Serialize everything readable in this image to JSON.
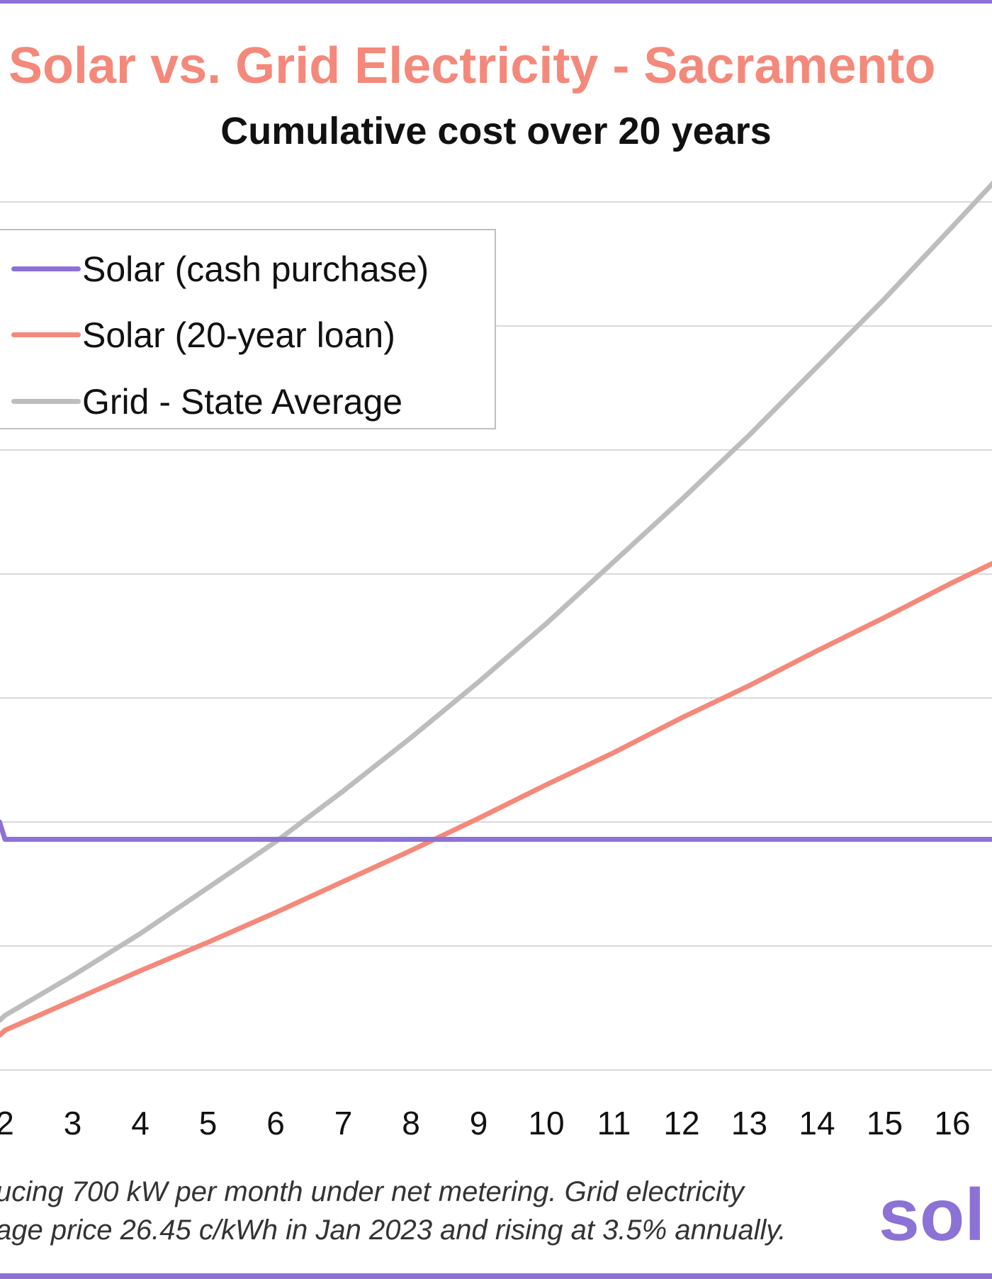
{
  "title": "Solar vs. Grid Electricity - Sacramento",
  "subtitle": "Cumulative cost over 20 years",
  "colors": {
    "accent": "#8c72d6",
    "title": "#f4897b",
    "solar_cash": "#8c72d6",
    "solar_loan": "#f4897b",
    "grid": "#bdbdbd",
    "gridline": "#d9d9d9"
  },
  "legend": {
    "items": [
      {
        "label": "Solar (cash purchase)",
        "color": "#8c72d6"
      },
      {
        "label": "Solar (20-year loan)",
        "color": "#f4897b"
      },
      {
        "label": "Grid - State Average",
        "color": "#bdbdbd"
      }
    ]
  },
  "footnote": {
    "line1": "ucing 700 kW per month under net metering. Grid electricity",
    "line2": "age price 26.45 c/kWh in Jan 2023 and rising at 3.5% annually."
  },
  "logo_text": "sol",
  "chart_data": {
    "type": "line",
    "title": "Solar vs. Grid Electricity - Sacramento",
    "subtitle": "Cumulative cost over 20 years",
    "x_tick_labels": [
      "2",
      "3",
      "4",
      "5",
      "6",
      "7",
      "8",
      "9",
      "10",
      "11",
      "12",
      "13",
      "14",
      "15",
      "16"
    ],
    "grid": true,
    "legend_position": "top-left",
    "note": "Y axis values not visible in crop; series given in gridline units (0 = bottom gridline, 7 = top gridline).",
    "ylim": [
      0,
      7
    ],
    "series": [
      {
        "name": "Solar (cash purchase)",
        "color": "#8c72d6",
        "x": [
          1.92,
          2,
          3,
          4,
          5,
          6,
          7,
          8,
          9,
          10,
          11,
          12,
          13,
          14,
          15,
          16,
          16.65
        ],
        "y": [
          2.0,
          1.86,
          1.86,
          1.86,
          1.86,
          1.86,
          1.86,
          1.86,
          1.86,
          1.86,
          1.86,
          1.86,
          1.86,
          1.86,
          1.86,
          1.86,
          1.86
        ]
      },
      {
        "name": "Solar (20-year loan)",
        "color": "#f4897b",
        "x": [
          1.92,
          2,
          3,
          4,
          5,
          6,
          7,
          8,
          9,
          10,
          11,
          12,
          13,
          14,
          15,
          16,
          16.65
        ],
        "y": [
          0.28,
          0.32,
          0.56,
          0.8,
          1.03,
          1.27,
          1.52,
          1.77,
          2.03,
          2.3,
          2.56,
          2.84,
          3.1,
          3.38,
          3.65,
          3.93,
          4.1
        ]
      },
      {
        "name": "Grid - State Average",
        "color": "#bdbdbd",
        "x": [
          1.92,
          2,
          3,
          4,
          5,
          6,
          7,
          8,
          9,
          10,
          11,
          12,
          13,
          14,
          15,
          16,
          16.65
        ],
        "y": [
          0.4,
          0.44,
          0.76,
          1.1,
          1.47,
          1.84,
          2.25,
          2.68,
          3.13,
          3.6,
          4.1,
          4.6,
          5.12,
          5.67,
          6.22,
          6.8,
          7.18
        ]
      }
    ]
  }
}
